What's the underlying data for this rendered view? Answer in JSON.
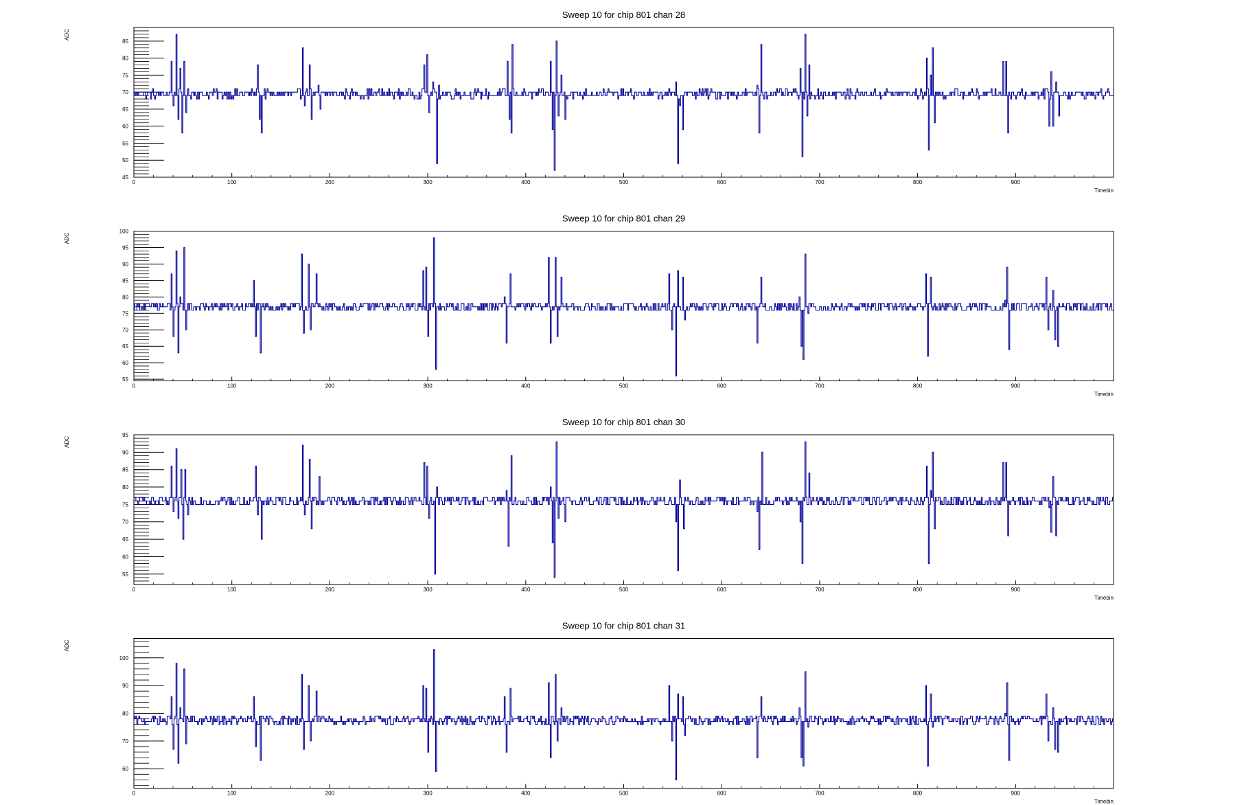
{
  "chart_data": [
    {
      "type": "line",
      "title": "Sweep 10 for chip 801 chan 28",
      "xlabel": "Timebin",
      "ylabel": "ADC",
      "xlim": [
        0,
        1000
      ],
      "ylim": [
        45,
        89
      ],
      "x_ticks": [
        "0",
        "100",
        "200",
        "300",
        "400",
        "500",
        "600",
        "700",
        "800",
        "900"
      ],
      "y_ticks": [
        "45",
        "50",
        "55",
        "60",
        "65",
        "70",
        "75",
        "80",
        "85"
      ],
      "baseline": 69.5,
      "noise": 1.2,
      "line_color": "#000099",
      "grid": false,
      "spikes": [
        {
          "x": 38,
          "v": 79
        },
        {
          "x": 40,
          "v": 66
        },
        {
          "x": 43,
          "v": 87
        },
        {
          "x": 45,
          "v": 62
        },
        {
          "x": 47,
          "v": 77
        },
        {
          "x": 49,
          "v": 58
        },
        {
          "x": 51,
          "v": 79
        },
        {
          "x": 53,
          "v": 64
        },
        {
          "x": 126,
          "v": 78
        },
        {
          "x": 128,
          "v": 62
        },
        {
          "x": 130,
          "v": 58
        },
        {
          "x": 172,
          "v": 83
        },
        {
          "x": 174,
          "v": 66
        },
        {
          "x": 179,
          "v": 78
        },
        {
          "x": 181,
          "v": 62
        },
        {
          "x": 188,
          "v": 72
        },
        {
          "x": 190,
          "v": 65
        },
        {
          "x": 296,
          "v": 78
        },
        {
          "x": 299,
          "v": 81
        },
        {
          "x": 301,
          "v": 64
        },
        {
          "x": 305,
          "v": 73
        },
        {
          "x": 309,
          "v": 49
        },
        {
          "x": 311,
          "v": 72
        },
        {
          "x": 381,
          "v": 79
        },
        {
          "x": 383,
          "v": 62
        },
        {
          "x": 385,
          "v": 58
        },
        {
          "x": 386,
          "v": 84
        },
        {
          "x": 425,
          "v": 79
        },
        {
          "x": 427,
          "v": 59
        },
        {
          "x": 429,
          "v": 47
        },
        {
          "x": 431,
          "v": 85
        },
        {
          "x": 433,
          "v": 63
        },
        {
          "x": 436,
          "v": 75
        },
        {
          "x": 440,
          "v": 62
        },
        {
          "x": 553,
          "v": 73
        },
        {
          "x": 555,
          "v": 49
        },
        {
          "x": 557,
          "v": 66
        },
        {
          "x": 560,
          "v": 59
        },
        {
          "x": 636,
          "v": 72
        },
        {
          "x": 638,
          "v": 58
        },
        {
          "x": 640,
          "v": 84
        },
        {
          "x": 680,
          "v": 77
        },
        {
          "x": 682,
          "v": 51
        },
        {
          "x": 685,
          "v": 87
        },
        {
          "x": 687,
          "v": 63
        },
        {
          "x": 689,
          "v": 78
        },
        {
          "x": 809,
          "v": 80
        },
        {
          "x": 811,
          "v": 53
        },
        {
          "x": 813,
          "v": 75
        },
        {
          "x": 815,
          "v": 83
        },
        {
          "x": 817,
          "v": 61
        },
        {
          "x": 887,
          "v": 79
        },
        {
          "x": 890,
          "v": 79
        },
        {
          "x": 892,
          "v": 58
        },
        {
          "x": 934,
          "v": 60
        },
        {
          "x": 936,
          "v": 76
        },
        {
          "x": 938,
          "v": 60
        },
        {
          "x": 941,
          "v": 73
        },
        {
          "x": 944,
          "v": 63
        }
      ]
    },
    {
      "type": "line",
      "title": "Sweep 10 for chip 801 chan 29",
      "xlabel": "Timebin",
      "ylabel": "ADC",
      "xlim": [
        0,
        1000
      ],
      "ylim": [
        54.5,
        100
      ],
      "x_ticks": [
        "0",
        "100",
        "200",
        "300",
        "400",
        "500",
        "600",
        "700",
        "800",
        "900"
      ],
      "y_ticks": [
        "55",
        "60",
        "65",
        "70",
        "75",
        "80",
        "85",
        "90",
        "95",
        "100"
      ],
      "baseline": 77,
      "noise": 1.5,
      "line_color": "#000099",
      "grid": false,
      "spikes": [
        {
          "x": 38,
          "v": 87
        },
        {
          "x": 40,
          "v": 68
        },
        {
          "x": 43,
          "v": 94
        },
        {
          "x": 45,
          "v": 63
        },
        {
          "x": 47,
          "v": 80
        },
        {
          "x": 51,
          "v": 95
        },
        {
          "x": 53,
          "v": 70
        },
        {
          "x": 122,
          "v": 85
        },
        {
          "x": 124,
          "v": 68
        },
        {
          "x": 129,
          "v": 63
        },
        {
          "x": 171,
          "v": 93
        },
        {
          "x": 173,
          "v": 69
        },
        {
          "x": 178,
          "v": 90
        },
        {
          "x": 180,
          "v": 70
        },
        {
          "x": 186,
          "v": 87
        },
        {
          "x": 295,
          "v": 88
        },
        {
          "x": 298,
          "v": 89
        },
        {
          "x": 300,
          "v": 68
        },
        {
          "x": 306,
          "v": 98
        },
        {
          "x": 308,
          "v": 58
        },
        {
          "x": 378,
          "v": 80
        },
        {
          "x": 380,
          "v": 66
        },
        {
          "x": 384,
          "v": 87
        },
        {
          "x": 423,
          "v": 92
        },
        {
          "x": 425,
          "v": 66
        },
        {
          "x": 430,
          "v": 92
        },
        {
          "x": 432,
          "v": 68
        },
        {
          "x": 436,
          "v": 86
        },
        {
          "x": 546,
          "v": 87
        },
        {
          "x": 549,
          "v": 70
        },
        {
          "x": 553,
          "v": 56
        },
        {
          "x": 555,
          "v": 88
        },
        {
          "x": 560,
          "v": 86
        },
        {
          "x": 562,
          "v": 73
        },
        {
          "x": 636,
          "v": 66
        },
        {
          "x": 640,
          "v": 86
        },
        {
          "x": 679,
          "v": 80
        },
        {
          "x": 681,
          "v": 65
        },
        {
          "x": 683,
          "v": 61
        },
        {
          "x": 685,
          "v": 93
        },
        {
          "x": 688,
          "v": 75
        },
        {
          "x": 806,
          "v": 77
        },
        {
          "x": 808,
          "v": 87
        },
        {
          "x": 810,
          "v": 62
        },
        {
          "x": 813,
          "v": 86
        },
        {
          "x": 815,
          "v": 76
        },
        {
          "x": 889,
          "v": 79
        },
        {
          "x": 891,
          "v": 89
        },
        {
          "x": 893,
          "v": 64
        },
        {
          "x": 931,
          "v": 86
        },
        {
          "x": 933,
          "v": 70
        },
        {
          "x": 938,
          "v": 82
        },
        {
          "x": 940,
          "v": 67
        },
        {
          "x": 943,
          "v": 65
        }
      ]
    },
    {
      "type": "line",
      "title": "Sweep 10 for chip 801 chan 30",
      "xlabel": "Timebin",
      "ylabel": "ADC",
      "xlim": [
        0,
        1000
      ],
      "ylim": [
        52,
        95
      ],
      "x_ticks": [
        "0",
        "100",
        "200",
        "300",
        "400",
        "500",
        "600",
        "700",
        "800",
        "900"
      ],
      "y_ticks": [
        "55",
        "60",
        "65",
        "70",
        "75",
        "80",
        "85",
        "90",
        "95"
      ],
      "baseline": 76,
      "noise": 1.4,
      "line_color": "#000099",
      "grid": false,
      "spikes": [
        {
          "x": 38,
          "v": 86
        },
        {
          "x": 40,
          "v": 73
        },
        {
          "x": 43,
          "v": 91
        },
        {
          "x": 45,
          "v": 71
        },
        {
          "x": 48,
          "v": 85
        },
        {
          "x": 50,
          "v": 65
        },
        {
          "x": 52,
          "v": 85
        },
        {
          "x": 55,
          "v": 72
        },
        {
          "x": 124,
          "v": 86
        },
        {
          "x": 126,
          "v": 72
        },
        {
          "x": 130,
          "v": 65
        },
        {
          "x": 172,
          "v": 92
        },
        {
          "x": 174,
          "v": 72
        },
        {
          "x": 179,
          "v": 88
        },
        {
          "x": 181,
          "v": 68
        },
        {
          "x": 189,
          "v": 83
        },
        {
          "x": 296,
          "v": 87
        },
        {
          "x": 299,
          "v": 86
        },
        {
          "x": 301,
          "v": 71
        },
        {
          "x": 307,
          "v": 55
        },
        {
          "x": 309,
          "v": 80
        },
        {
          "x": 380,
          "v": 79
        },
        {
          "x": 382,
          "v": 63
        },
        {
          "x": 385,
          "v": 89
        },
        {
          "x": 425,
          "v": 80
        },
        {
          "x": 427,
          "v": 64
        },
        {
          "x": 429,
          "v": 54
        },
        {
          "x": 431,
          "v": 93
        },
        {
          "x": 433,
          "v": 71
        },
        {
          "x": 440,
          "v": 70
        },
        {
          "x": 553,
          "v": 70
        },
        {
          "x": 555,
          "v": 56
        },
        {
          "x": 557,
          "v": 82
        },
        {
          "x": 561,
          "v": 68
        },
        {
          "x": 636,
          "v": 73
        },
        {
          "x": 638,
          "v": 62
        },
        {
          "x": 641,
          "v": 90
        },
        {
          "x": 680,
          "v": 70
        },
        {
          "x": 682,
          "v": 58
        },
        {
          "x": 685,
          "v": 93
        },
        {
          "x": 687,
          "v": 75
        },
        {
          "x": 689,
          "v": 84
        },
        {
          "x": 809,
          "v": 86
        },
        {
          "x": 811,
          "v": 58
        },
        {
          "x": 813,
          "v": 79
        },
        {
          "x": 815,
          "v": 90
        },
        {
          "x": 817,
          "v": 68
        },
        {
          "x": 887,
          "v": 87
        },
        {
          "x": 890,
          "v": 87
        },
        {
          "x": 892,
          "v": 66
        },
        {
          "x": 934,
          "v": 74
        },
        {
          "x": 936,
          "v": 67
        },
        {
          "x": 938,
          "v": 83
        },
        {
          "x": 941,
          "v": 66
        },
        {
          "x": 944,
          "v": 77
        }
      ]
    },
    {
      "type": "line",
      "title": "Sweep 10 for chip 801 chan 31",
      "xlabel": "Timebin",
      "ylabel": "ADC",
      "xlim": [
        0,
        1000
      ],
      "ylim": [
        53,
        107
      ],
      "x_ticks": [
        "0",
        "100",
        "200",
        "300",
        "400",
        "500",
        "600",
        "700",
        "800",
        "900"
      ],
      "y_ticks": [
        "60",
        "70",
        "80",
        "90",
        "100"
      ],
      "baseline": 77.5,
      "noise": 1.6,
      "line_color": "#000099",
      "grid": false,
      "spikes": [
        {
          "x": 38,
          "v": 86
        },
        {
          "x": 40,
          "v": 67
        },
        {
          "x": 43,
          "v": 98
        },
        {
          "x": 45,
          "v": 62
        },
        {
          "x": 47,
          "v": 82
        },
        {
          "x": 51,
          "v": 96
        },
        {
          "x": 53,
          "v": 69
        },
        {
          "x": 122,
          "v": 86
        },
        {
          "x": 124,
          "v": 68
        },
        {
          "x": 129,
          "v": 63
        },
        {
          "x": 171,
          "v": 94
        },
        {
          "x": 173,
          "v": 67
        },
        {
          "x": 178,
          "v": 90
        },
        {
          "x": 180,
          "v": 70
        },
        {
          "x": 186,
          "v": 88
        },
        {
          "x": 295,
          "v": 90
        },
        {
          "x": 298,
          "v": 89
        },
        {
          "x": 300,
          "v": 66
        },
        {
          "x": 306,
          "v": 103
        },
        {
          "x": 308,
          "v": 59
        },
        {
          "x": 378,
          "v": 86
        },
        {
          "x": 380,
          "v": 66
        },
        {
          "x": 384,
          "v": 89
        },
        {
          "x": 423,
          "v": 91
        },
        {
          "x": 425,
          "v": 64
        },
        {
          "x": 430,
          "v": 94
        },
        {
          "x": 432,
          "v": 70
        },
        {
          "x": 436,
          "v": 82
        },
        {
          "x": 546,
          "v": 90
        },
        {
          "x": 549,
          "v": 70
        },
        {
          "x": 553,
          "v": 56
        },
        {
          "x": 555,
          "v": 87
        },
        {
          "x": 560,
          "v": 86
        },
        {
          "x": 562,
          "v": 72
        },
        {
          "x": 636,
          "v": 64
        },
        {
          "x": 640,
          "v": 86
        },
        {
          "x": 679,
          "v": 82
        },
        {
          "x": 681,
          "v": 64
        },
        {
          "x": 683,
          "v": 61
        },
        {
          "x": 685,
          "v": 95
        },
        {
          "x": 688,
          "v": 75
        },
        {
          "x": 806,
          "v": 78
        },
        {
          "x": 808,
          "v": 90
        },
        {
          "x": 810,
          "v": 61
        },
        {
          "x": 813,
          "v": 87
        },
        {
          "x": 815,
          "v": 75
        },
        {
          "x": 889,
          "v": 80
        },
        {
          "x": 891,
          "v": 91
        },
        {
          "x": 893,
          "v": 63
        },
        {
          "x": 931,
          "v": 87
        },
        {
          "x": 933,
          "v": 70
        },
        {
          "x": 938,
          "v": 82
        },
        {
          "x": 940,
          "v": 67
        },
        {
          "x": 943,
          "v": 66
        }
      ]
    }
  ]
}
